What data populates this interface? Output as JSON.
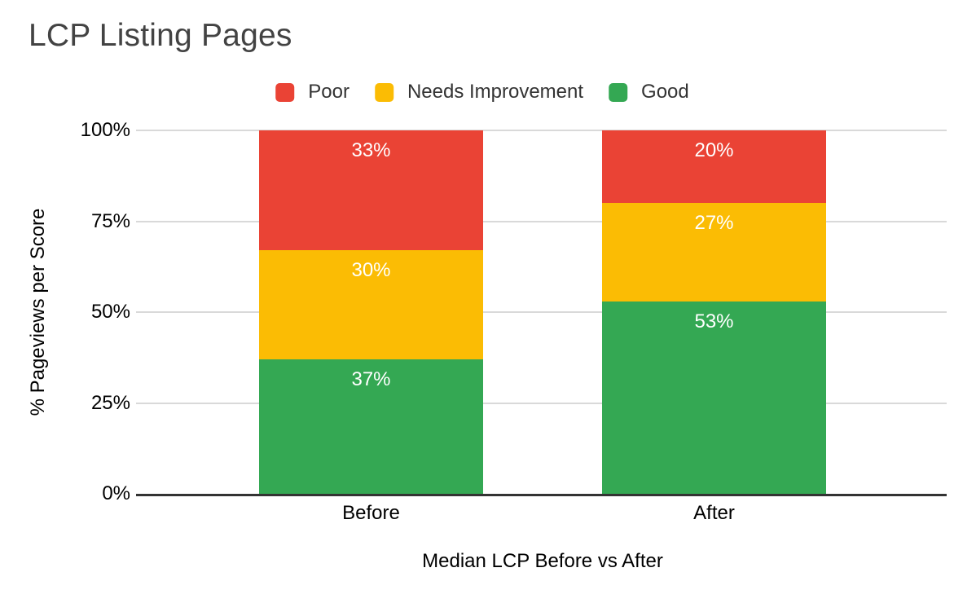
{
  "title": "LCP Listing Pages",
  "legend": {
    "items": [
      {
        "label": "Poor",
        "color": "#EA4335"
      },
      {
        "label": "Needs Improvement",
        "color": "#FBBC04"
      },
      {
        "label": "Good",
        "color": "#34A853"
      }
    ]
  },
  "axes": {
    "ylabel": "% Pageviews per Score",
    "xlabel": "Median LCP Before vs After",
    "yticks": [
      "0%",
      "25%",
      "50%",
      "75%",
      "100%"
    ],
    "categories": [
      "Before",
      "After"
    ]
  },
  "colors": {
    "poor": "#EA4335",
    "needs_improvement": "#FBBC04",
    "good": "#34A853",
    "gridline": "#D9D9D9",
    "baseline": "#333333",
    "title_text": "#434343",
    "axis_text": "#000000",
    "bar_label_text": "#FFFFFF"
  },
  "chart_data": {
    "type": "bar",
    "stacked": true,
    "title": "LCP Listing Pages",
    "xlabel": "Median LCP Before vs After",
    "ylabel": "% Pageviews per Score",
    "categories": [
      "Before",
      "After"
    ],
    "series": [
      {
        "name": "Good",
        "color": "#34A853",
        "values": [
          37,
          53
        ]
      },
      {
        "name": "Needs Improvement",
        "color": "#FBBC04",
        "values": [
          30,
          27
        ]
      },
      {
        "name": "Poor",
        "color": "#EA4335",
        "values": [
          33,
          20
        ]
      }
    ],
    "value_suffix": "%",
    "ylim": [
      0,
      100
    ],
    "ytick_values": [
      0,
      25,
      50,
      75,
      100
    ],
    "ytick_labels": [
      "0%",
      "25%",
      "50%",
      "75%",
      "100%"
    ],
    "grid": true,
    "legend_position": "top",
    "legend_entries": [
      "Poor",
      "Needs Improvement",
      "Good"
    ]
  }
}
